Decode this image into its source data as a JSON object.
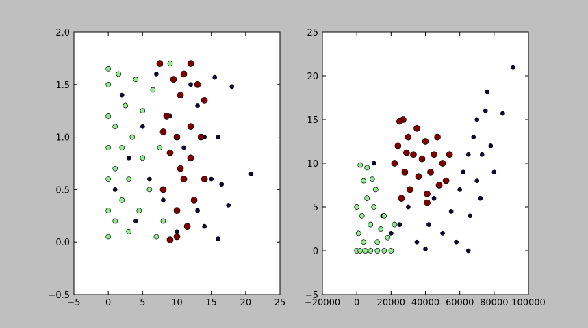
{
  "chart_data": [
    {
      "type": "scatter",
      "xlim": [
        -5,
        25
      ],
      "ylim": [
        -0.5,
        2.0
      ],
      "xticks": [
        {
          "value": -5,
          "label": "−5"
        },
        0,
        5,
        10,
        15,
        20,
        25
      ],
      "yticks": [
        {
          "value": -0.5,
          "label": "−0.5"
        },
        {
          "value": 0,
          "label": "0.0"
        },
        0.5,
        {
          "value": 1,
          "label": "1.0"
        },
        1.5,
        {
          "value": 2,
          "label": "2.0"
        }
      ],
      "series": [
        {
          "color": "#0a0a3c",
          "marker_size": 3,
          "x": [
            1,
            2,
            3,
            4,
            5,
            6,
            7,
            8,
            9,
            10,
            11,
            12,
            13,
            14,
            15,
            15.5,
            16,
            16,
            17.5,
            18,
            20.8,
            14,
            16.5,
            13
          ],
          "y": [
            0.5,
            1.4,
            0.8,
            0.2,
            1.1,
            0.6,
            1.6,
            0.4,
            1.2,
            0.1,
            0.9,
            1.5,
            0.3,
            1.0,
            0.6,
            1.57,
            0.03,
            1.0,
            0.35,
            1.48,
            0.65,
            0.15,
            0.55,
            1.3
          ]
        },
        {
          "color": "#800000",
          "marker_size": 4.5,
          "x": [
            7.5,
            8,
            8.5,
            9,
            9,
            9.5,
            10,
            10,
            10.5,
            11,
            11,
            11.5,
            12,
            12,
            12.5,
            13,
            13.5,
            14,
            14,
            8,
            10,
            12,
            10.5
          ],
          "y": [
            1.7,
            0.5,
            1.2,
            0.02,
            0.85,
            1.55,
            0.3,
            1.0,
            1.4,
            0.6,
            1.6,
            0.15,
            1.1,
            0.8,
            0.4,
            1.5,
            1.0,
            0.6,
            1.35,
            1.05,
            0.05,
            1.7,
            0.7
          ]
        },
        {
          "color": "#90ee90",
          "marker_size": 3.5,
          "x": [
            0,
            0,
            0,
            0,
            0,
            0,
            0,
            1,
            1,
            1,
            1.5,
            2,
            2,
            2.5,
            3,
            3,
            3.5,
            4,
            4.5,
            5,
            5,
            6,
            6.5,
            7,
            7.5,
            9,
            8
          ],
          "y": [
            0.05,
            0.3,
            0.6,
            0.9,
            1.2,
            1.5,
            1.65,
            0.2,
            0.7,
            1.1,
            1.6,
            0.4,
            0.9,
            1.3,
            0.1,
            0.6,
            1.0,
            1.55,
            0.3,
            0.8,
            1.25,
            0.5,
            1.45,
            0.05,
            0.9,
            1.7,
            0.2
          ]
        }
      ]
    },
    {
      "type": "scatter",
      "xlim": [
        -20000,
        100000
      ],
      "ylim": [
        -5,
        25
      ],
      "xticks": [
        {
          "value": -20000,
          "label": "−20000"
        },
        0,
        20000,
        40000,
        60000,
        80000,
        100000
      ],
      "yticks": [
        {
          "value": -5,
          "label": "−5"
        },
        0,
        5,
        10,
        15,
        20,
        25
      ],
      "series": [
        {
          "color": "#0a0a3c",
          "marker_size": 3,
          "x": [
            10000,
            15000,
            20000,
            25000,
            30000,
            35000,
            40000,
            42000,
            45000,
            50000,
            55000,
            58000,
            60000,
            62000,
            65000,
            66000,
            68000,
            70000,
            70000,
            72000,
            73000,
            75000,
            76000,
            78000,
            80000,
            85000,
            91000,
            65000
          ],
          "y": [
            10,
            4,
            2,
            3,
            5,
            1,
            0.2,
            3,
            6,
            2,
            4.5,
            1,
            7,
            9,
            11,
            4,
            13,
            8,
            15,
            6,
            11,
            16,
            18.2,
            12,
            9,
            15.7,
            21,
            0
          ]
        },
        {
          "color": "#800000",
          "marker_size": 4.5,
          "x": [
            22000,
            24000,
            26000,
            27000,
            28000,
            30000,
            31000,
            33000,
            35000,
            36000,
            38000,
            40000,
            41000,
            43000,
            45000,
            47000,
            48000,
            50000,
            52000,
            54000,
            41000,
            29000,
            25000
          ],
          "y": [
            10,
            12,
            6,
            15,
            9,
            13,
            7,
            11,
            14,
            8.5,
            10.5,
            12.5,
            6.5,
            9,
            11,
            13,
            7.5,
            10,
            8,
            11,
            5.5,
            11.2,
            14.8
          ]
        },
        {
          "color": "#90ee90",
          "marker_size": 3.5,
          "x": [
            0,
            2000,
            5000,
            8000,
            12000,
            16000,
            20000,
            1000,
            3000,
            6000,
            4000,
            2000,
            8000,
            10000,
            12000,
            14000,
            16000,
            18000,
            6000,
            0,
            11000,
            4000,
            22000,
            9000
          ],
          "y": [
            0,
            0,
            0,
            0,
            0,
            0,
            0,
            2,
            4,
            6,
            8,
            9.8,
            3,
            5,
            1,
            2.5,
            4,
            1.5,
            9.5,
            5,
            7,
            1,
            3,
            8.2
          ]
        }
      ]
    }
  ]
}
